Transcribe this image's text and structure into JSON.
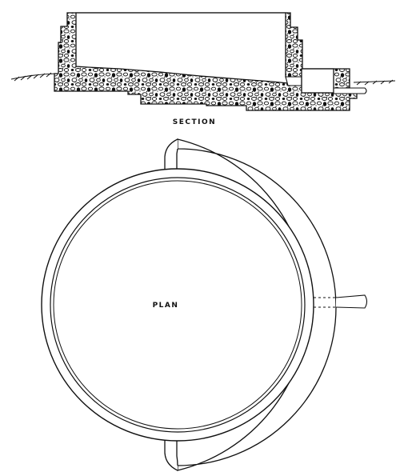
{
  "labels": {
    "section": "SECTION",
    "plan": "PLAN"
  },
  "colors": {
    "ink": "#111111",
    "paper": "#ffffff"
  }
}
